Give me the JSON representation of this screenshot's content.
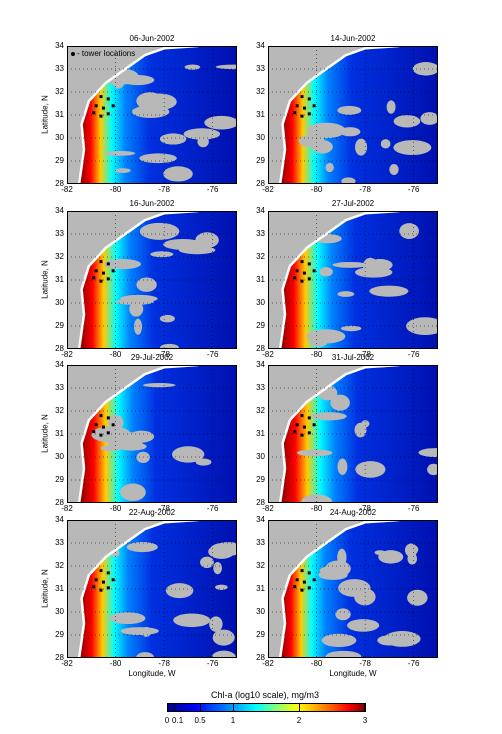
{
  "panels": [
    {
      "title": "06-Jun-2002",
      "intensity": 0.45,
      "show_legend": true,
      "show_ylabel": true,
      "show_xlabel": false
    },
    {
      "title": "14-Jun-2002",
      "intensity": 0.55,
      "show_legend": false,
      "show_ylabel": false,
      "show_xlabel": false
    },
    {
      "title": "16-Jun-2002",
      "intensity": 0.7,
      "show_legend": false,
      "show_ylabel": true,
      "show_xlabel": false
    },
    {
      "title": "27-Jul-2002",
      "intensity": 0.75,
      "show_legend": false,
      "show_ylabel": false,
      "show_xlabel": false
    },
    {
      "title": "29-Jul-2002",
      "intensity": 0.85,
      "show_legend": false,
      "show_ylabel": true,
      "show_xlabel": false
    },
    {
      "title": "31-Jul-2002",
      "intensity": 0.9,
      "show_legend": false,
      "show_ylabel": false,
      "show_xlabel": false
    },
    {
      "title": "22-Aug-2002",
      "intensity": 0.6,
      "show_legend": false,
      "show_ylabel": true,
      "show_xlabel": true
    },
    {
      "title": "24-Aug-2002",
      "intensity": 0.4,
      "show_legend": false,
      "show_ylabel": false,
      "show_xlabel": true
    }
  ],
  "map_extent": {
    "lon_min": -82,
    "lon_max": -75,
    "lat_min": 28,
    "lat_max": 34
  },
  "y_ticks": [
    "34",
    "33",
    "32",
    "31",
    "30",
    "29",
    "28"
  ],
  "x_ticks": [
    "-82",
    "-80",
    "-78",
    "-76"
  ],
  "y_label": "Latitude, N",
  "x_label": "Longitude, W",
  "legend_label": "tower locations",
  "colorbar": {
    "title": "Chl-a (log10 scale), mg/m3",
    "ticks": [
      "0",
      "0.1",
      "0.5",
      "1",
      "2",
      "3"
    ],
    "tick_values": [
      0,
      0.1,
      0.5,
      1,
      2,
      3
    ],
    "colors": [
      "#00008f",
      "#0000ff",
      "#0080ff",
      "#00ffff",
      "#ffff00",
      "#ff0000",
      "#800000"
    ]
  },
  "land_color": "#b8b8b8",
  "tower_locations": [
    {
      "lon": -80.6,
      "lat": 31.8
    },
    {
      "lon": -80.3,
      "lat": 31.7
    },
    {
      "lon": -80.8,
      "lat": 31.4
    },
    {
      "lon": -80.5,
      "lat": 31.3
    },
    {
      "lon": -80.1,
      "lat": 31.4
    },
    {
      "lon": -80.9,
      "lat": 31.1
    },
    {
      "lon": -80.6,
      "lat": 30.95
    },
    {
      "lon": -80.3,
      "lat": 31.05
    }
  ]
}
